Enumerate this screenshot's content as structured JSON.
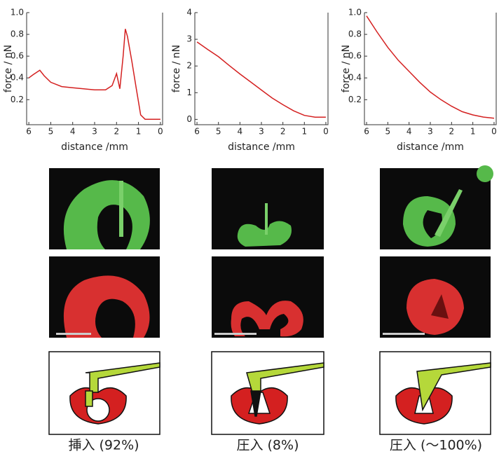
{
  "chart_data": [
    {
      "type": "line",
      "xlabel": "distance /mm",
      "ylabel": "force / nN",
      "xlim": [
        6.1,
        -0.1
      ],
      "xticks": [
        6,
        5,
        4,
        3,
        2,
        1,
        0
      ],
      "ylim": [
        -0.03,
        1.0
      ],
      "yticks": [
        0.2,
        0.4,
        0.6,
        0.8,
        {
          "value": 1,
          "label": "1.0"
        }
      ],
      "color": "#d42020",
      "x": [
        6,
        5.8,
        5.5,
        5.3,
        5,
        4.5,
        4,
        3.5,
        3,
        2.5,
        2.2,
        2.0,
        1.85,
        1.7,
        1.6,
        1.5,
        1.3,
        1.1,
        0.9,
        0.7,
        0.3,
        0
      ],
      "values": [
        0.4,
        0.43,
        0.47,
        0.42,
        0.36,
        0.32,
        0.31,
        0.3,
        0.29,
        0.29,
        0.33,
        0.44,
        0.3,
        0.6,
        0.85,
        0.78,
        0.55,
        0.3,
        0.06,
        0.02,
        0.02,
        0.02
      ]
    },
    {
      "type": "line",
      "xlabel": "distance /mm",
      "ylabel": "force / nN",
      "xlim": [
        6.1,
        -0.1
      ],
      "xticks": [
        6,
        5,
        4,
        3,
        2,
        1,
        0
      ],
      "ylim": [
        -0.2,
        4
      ],
      "yticks": [
        0,
        1,
        2,
        3,
        4
      ],
      "color": "#d42020",
      "x": [
        6,
        5.5,
        5,
        4.5,
        4,
        3.5,
        3,
        2.5,
        2,
        1.5,
        1,
        0.5,
        0
      ],
      "values": [
        2.9,
        2.62,
        2.35,
        2.02,
        1.7,
        1.4,
        1.1,
        0.8,
        0.55,
        0.32,
        0.15,
        0.08,
        0.08
      ]
    },
    {
      "type": "line",
      "xlabel": "distance /mm",
      "ylabel": "force / nN",
      "xlim": [
        6.1,
        -0.1
      ],
      "xticks": [
        6,
        5,
        4,
        3,
        2,
        1,
        0
      ],
      "ylim": [
        -0.03,
        1.0
      ],
      "yticks": [
        0.2,
        0.4,
        0.6,
        0.8,
        {
          "value": 1,
          "label": "1.0"
        }
      ],
      "color": "#d42020",
      "x": [
        6,
        5.5,
        5,
        4.5,
        4,
        3.5,
        3,
        2.5,
        2,
        1.5,
        1,
        0.5,
        0
      ],
      "values": [
        0.97,
        0.82,
        0.68,
        0.56,
        0.46,
        0.36,
        0.27,
        0.2,
        0.14,
        0.09,
        0.06,
        0.04,
        0.03
      ]
    }
  ],
  "captions": [
    "挿入 (92%)",
    "圧入 (8%)",
    "圧入 (～100%)"
  ]
}
